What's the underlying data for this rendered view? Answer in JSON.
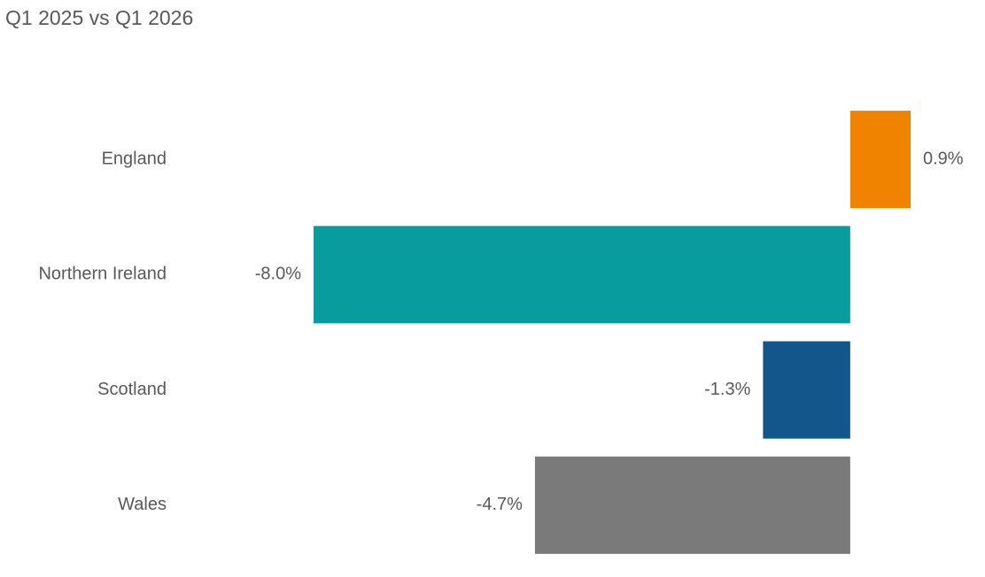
{
  "chart_data": {
    "type": "bar",
    "orientation": "horizontal",
    "title": "Q1 2025 vs Q1 2026",
    "categories": [
      "England",
      "Northern Ireland",
      "Scotland",
      "Wales"
    ],
    "values": [
      0.9,
      -8.0,
      -1.3,
      -4.7
    ],
    "value_labels": [
      "0.9%",
      "-8.0%",
      "-1.3%",
      "-4.7%"
    ],
    "colors": [
      "#f08300",
      "#089c9e",
      "#12568c",
      "#7a7a7a"
    ]
  }
}
